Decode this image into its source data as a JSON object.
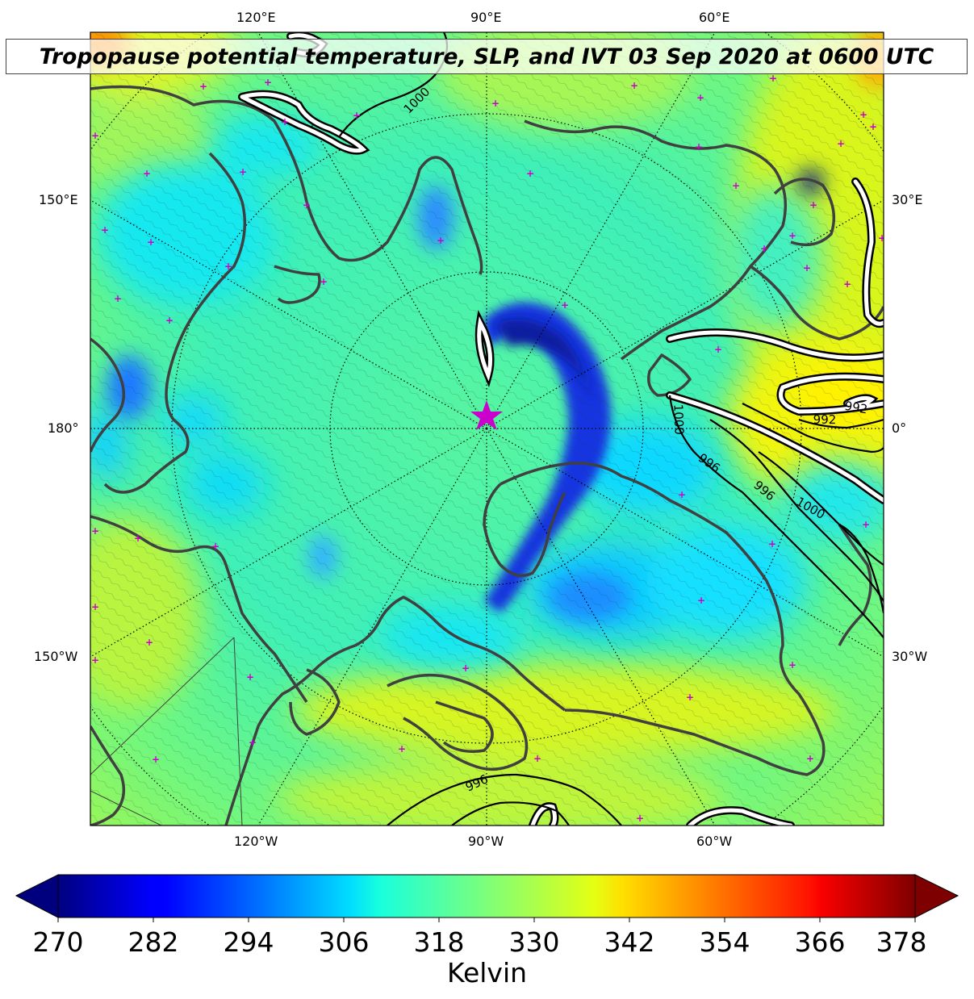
{
  "title": "Tropopause potential temperature, SLP, and IVT 03 Sep 2020 at 0600 UTC",
  "longitude_labels": {
    "top": [
      "120°E",
      "90°E",
      "60°E"
    ],
    "bottom": [
      "120°W",
      "90°W",
      "60°W"
    ],
    "left": [
      "150°E",
      "180°",
      "150°W"
    ],
    "right": [
      "30°E",
      "0°",
      "30°W"
    ]
  },
  "slp_contour_labels": [
    "1000",
    "1000",
    "996",
    "992",
    "1000",
    "996",
    "992",
    "996"
  ],
  "colorbar": {
    "ticks": [
      "270",
      "282",
      "294",
      "306",
      "318",
      "330",
      "342",
      "354",
      "366",
      "378"
    ],
    "min": 270,
    "max": 378,
    "label": "Kelvin",
    "colormap": "jet",
    "extend": "both"
  },
  "colors": {
    "coastline": "#404040",
    "ivt_contour": "#ffffff",
    "slp_contour": "#000000",
    "marker": "#cc00cc"
  }
}
